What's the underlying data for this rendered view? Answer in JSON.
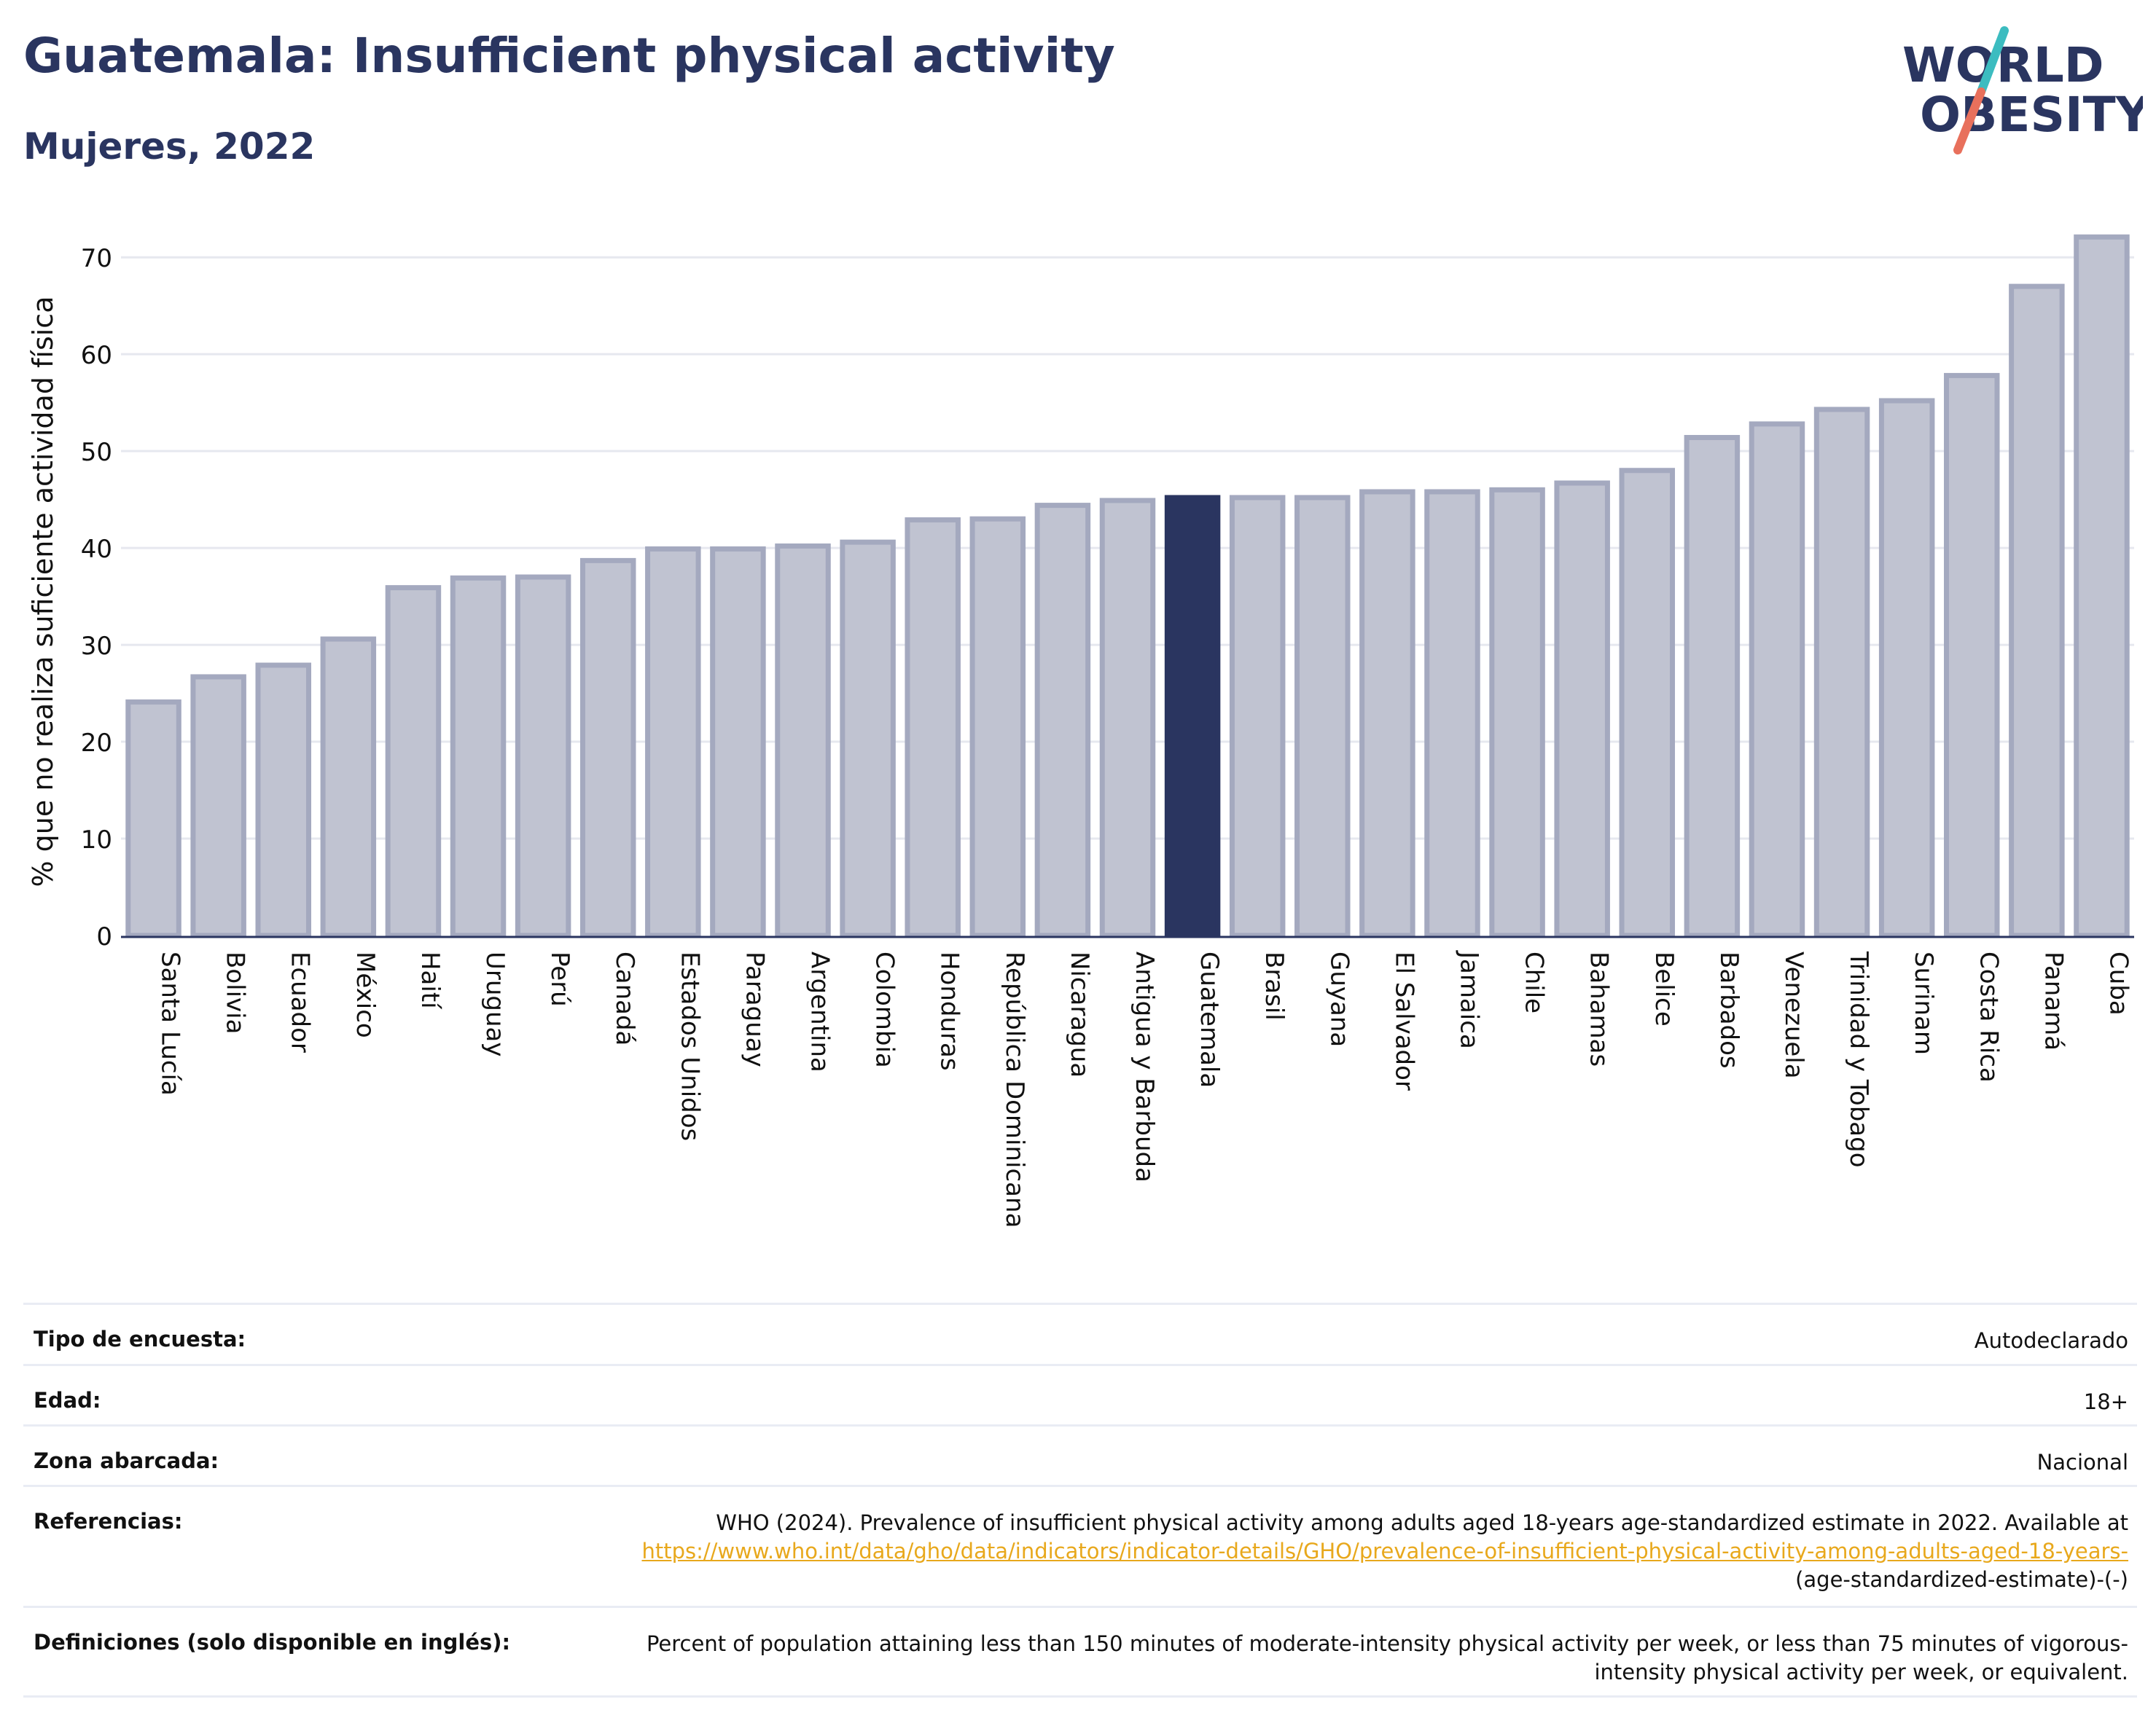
{
  "header": {
    "title": "Guatemala: Insufficient physical activity",
    "subtitle": "Mujeres, 2022"
  },
  "logo": {
    "line1": "WORLD",
    "line2": "OBESITY",
    "color_text": "#2a3560",
    "color_teal": "#3cbcc0",
    "color_coral": "#e8705c"
  },
  "chart_data": {
    "type": "bar",
    "ylabel": "% que no realiza suficiente actividad física",
    "xlabel": "",
    "ylim": [
      0,
      74
    ],
    "yticks": [
      0,
      10,
      20,
      30,
      40,
      50,
      60,
      70
    ],
    "grid": true,
    "highlight": "Guatemala",
    "colors": {
      "bar_fill": "#c0c3d1",
      "bar_stroke": "#a4a9bf",
      "highlight": "#2a3560",
      "grid": "#e6e8ef",
      "axis": "#2a3560"
    },
    "categories": [
      "Santa Lucía",
      "Bolivia",
      "Ecuador",
      "México",
      "Haití",
      "Uruguay",
      "Perú",
      "Canadá",
      "Estados Unidos",
      "Paraguay",
      "Argentina",
      "Colombia",
      "Honduras",
      "República Dominicana",
      "Nicaragua",
      "Antigua y Barbuda",
      "Guatemala",
      "Brasil",
      "Guyana",
      "El Salvador",
      "Jamaica",
      "Chile",
      "Bahamas",
      "Belice",
      "Barbados",
      "Venezuela",
      "Trinidad y Tobago",
      "Surinam",
      "Costa Rica",
      "Panamá",
      "Cuba"
    ],
    "values": [
      24.1,
      26.7,
      27.9,
      30.6,
      35.9,
      36.9,
      37.0,
      38.7,
      39.9,
      39.9,
      40.2,
      40.6,
      42.9,
      43.0,
      44.4,
      44.9,
      45.2,
      45.2,
      45.2,
      45.8,
      45.8,
      46.0,
      46.7,
      48.0,
      51.4,
      52.8,
      54.3,
      55.2,
      57.8,
      67.0,
      72.1
    ]
  },
  "meta": {
    "rows": [
      {
        "label": "Tipo de encuesta:",
        "value": "Autodeclarado"
      },
      {
        "label": "Edad:",
        "value": "18+"
      },
      {
        "label": "Zona abarcada:",
        "value": "Nacional"
      },
      {
        "label": "Referencias:",
        "value_pre": "WHO (2024). Prevalence of insufficient physical activity among adults aged 18-years age-standardized estimate in 2022. Available at",
        "link": "https://www.who.int/data/gho/data/indicators/indicator-details/GHO/prevalence-of-insufficient-physical-activity-among-adults-aged-18-years-",
        "value_post": "(age-standardized-estimate)-(-)"
      },
      {
        "label": "Definiciones (solo disponible en inglés):",
        "value": "Percent of population attaining less than 150 minutes of moderate-intensity physical activity per week, or less than 75 minutes of vigorous-intensity physical activity per week, or equivalent."
      }
    ]
  }
}
